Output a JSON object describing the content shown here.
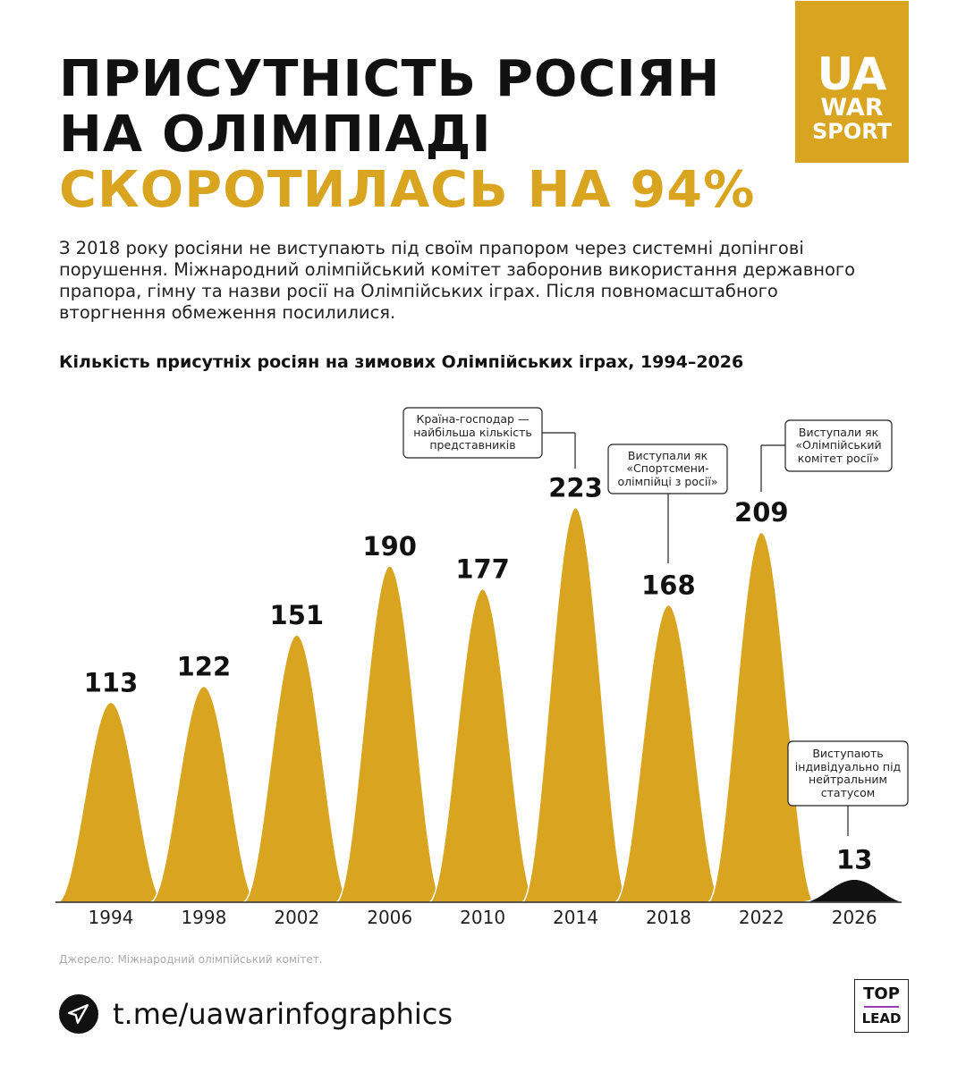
{
  "header": {
    "title_line1": "ПРИСУТНІСТЬ РОСІЯН",
    "title_line2": "НА ОЛІМПІАДІ",
    "title_line3": "СКОРОТИЛАСЬ НА 94%"
  },
  "logo": {
    "line1": "UA",
    "line2": "WAR",
    "line3": "SPORT"
  },
  "intro": "З 2018 року росіяни не виступають під своїм прапором через системні допінгові порушення. Міжнародний олімпійський комітет заборонив використання державного прапора, гімну та назви росії на Олімпійських іграх. Після повномасштабного вторгнення обмеження посилилися.",
  "chart_data": {
    "type": "area",
    "title": "Кількість присутніх росіян на зимових Олімпійських іграх, 1994–2026",
    "categories": [
      "1994",
      "1998",
      "2002",
      "2006",
      "2010",
      "2014",
      "2018",
      "2022",
      "2026"
    ],
    "values": [
      113,
      122,
      151,
      190,
      177,
      223,
      168,
      209,
      13
    ],
    "colors": {
      "default": "#d9a520",
      "highlight": "#111111"
    },
    "annotations": [
      {
        "category": "2014",
        "text": "Країна-господар — найбільша кількість представників"
      },
      {
        "category": "2018",
        "text": "Виступали як «Спортсмени-олімпійці з росії»"
      },
      {
        "category": "2022",
        "text": "Виступали як «Олімпійський комітет росії»"
      },
      {
        "category": "2026",
        "text": "Виступають індивідуально під нейтральним статусом"
      }
    ]
  },
  "source": "Джерело: Міжнародний олімпійський комітет.",
  "footer": {
    "telegram": "t.me/uawarinfographics",
    "partner_top": "TOP",
    "partner_bottom": "LEAD"
  }
}
